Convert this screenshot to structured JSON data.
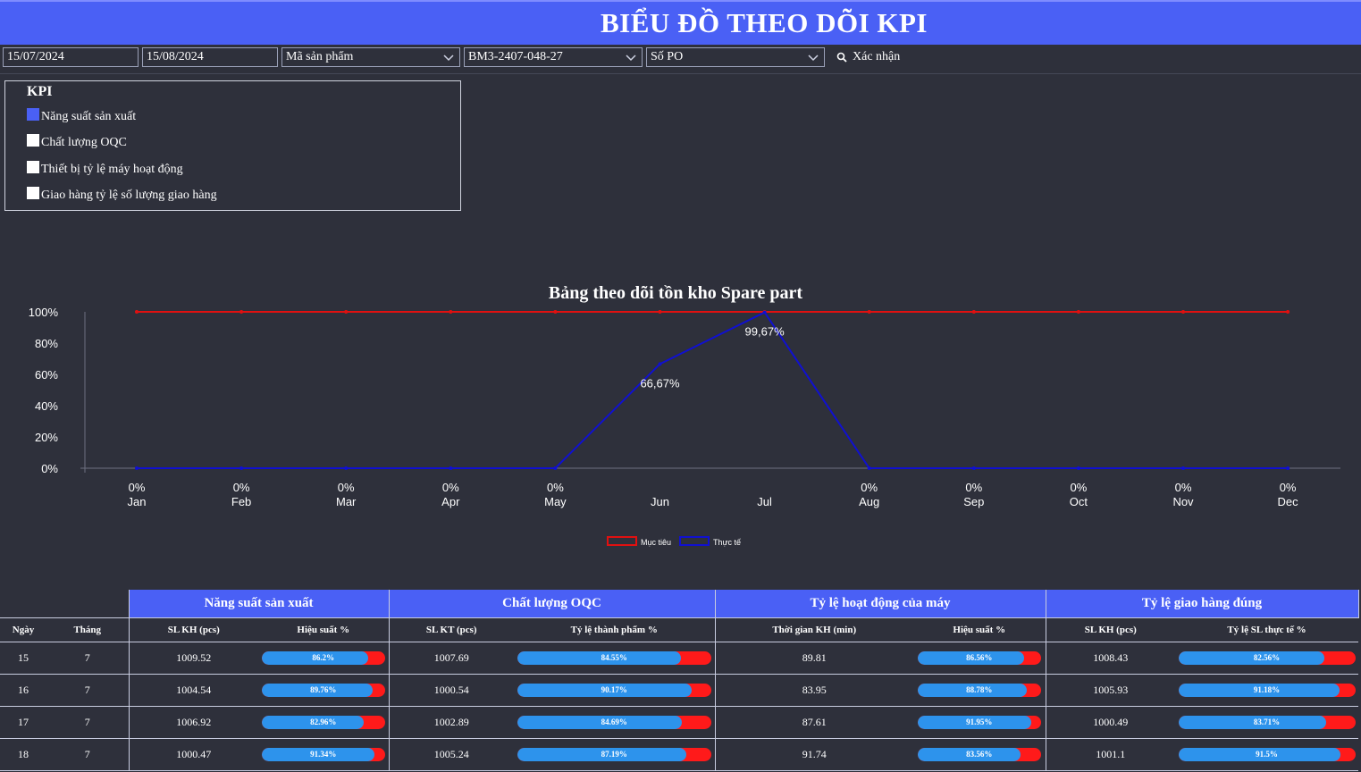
{
  "header": {
    "title": "BIỂU ĐỒ THEO DÕI KPI"
  },
  "filters": {
    "date_from": "15/07/2024",
    "date_to": "15/08/2024",
    "product_code": "Mã sản phẩm",
    "document_code": "BM3-2407-048-27",
    "po_number": "Số PO",
    "confirm_label": "Xác nhận"
  },
  "kpi": {
    "title": "KPI",
    "items": [
      {
        "label": "Năng suất sản xuất",
        "checked": true
      },
      {
        "label": "Chất lượng OQC",
        "checked": false
      },
      {
        "label": "Thiết bị tỷ lệ máy hoạt động",
        "checked": false
      },
      {
        "label": "Giao hàng tỷ lệ số lượng giao hàng",
        "checked": false
      }
    ]
  },
  "chart_data": {
    "type": "line",
    "title": "Bảng theo dõi tồn kho Spare part",
    "categories": [
      "Jan",
      "Feb",
      "Mar",
      "Apr",
      "May",
      "Jun",
      "Jul",
      "Aug",
      "Sep",
      "Oct",
      "Nov",
      "Dec"
    ],
    "yticks": [
      "0%",
      "20%",
      "40%",
      "60%",
      "80%",
      "100%"
    ],
    "ylim": [
      0,
      100
    ],
    "series": [
      {
        "name": "Mục tiêu",
        "color": "#e01010",
        "values": [
          100,
          100,
          100,
          100,
          100,
          100,
          100,
          100,
          100,
          100,
          100,
          100
        ]
      },
      {
        "name": "Thực tế",
        "color": "#1010d0",
        "values": [
          0,
          0,
          0,
          0,
          0,
          66.67,
          99.67,
          0,
          0,
          0,
          0,
          0
        ]
      }
    ],
    "x_value_labels": [
      "0%",
      "0%",
      "0%",
      "0%",
      "0%",
      "",
      "",
      "0%",
      "0%",
      "0%",
      "0%",
      "0%"
    ],
    "point_labels": [
      "",
      "",
      "",
      "",
      "",
      "66,67%",
      "99,67%",
      "",
      "",
      "",
      "",
      ""
    ],
    "legend_position": "bottom"
  },
  "table": {
    "groups": [
      "Năng suất sản xuất",
      "Chất lượng OQC",
      "Tỷ lệ hoạt động của máy",
      "Tỷ lệ giao hàng đúng"
    ],
    "columns": [
      "Ngày",
      "Tháng",
      "SL KH (pcs)",
      "Hiệu suất %",
      "SL KT (pcs)",
      "Tỷ lệ thành phẩm %",
      "Thời gian KH (min)",
      "Hiệu suất %",
      "SL KH (pcs)",
      "Tỷ lệ SL thực tế %"
    ],
    "rows": [
      {
        "day": "15",
        "month": "7",
        "c1": "1009.52",
        "p1": "86.2%",
        "c2": "1007.69",
        "p2": "84.55%",
        "c3": "89.81",
        "p3": "86.56%",
        "c4": "1008.43",
        "p4": "82.56%"
      },
      {
        "day": "16",
        "month": "7",
        "c1": "1004.54",
        "p1": "89.76%",
        "c2": "1000.54",
        "p2": "90.17%",
        "c3": "83.95",
        "p3": "88.78%",
        "c4": "1005.93",
        "p4": "91.18%"
      },
      {
        "day": "17",
        "month": "7",
        "c1": "1006.92",
        "p1": "82.96%",
        "c2": "1002.89",
        "p2": "84.69%",
        "c3": "87.61",
        "p3": "91.95%",
        "c4": "1000.49",
        "p4": "83.71%"
      },
      {
        "day": "18",
        "month": "7",
        "c1": "1000.47",
        "p1": "91.34%",
        "c2": "1005.24",
        "p2": "87.19%",
        "c3": "91.74",
        "p3": "83.56%",
        "c4": "1001.1",
        "p4": "91.5%"
      }
    ]
  }
}
